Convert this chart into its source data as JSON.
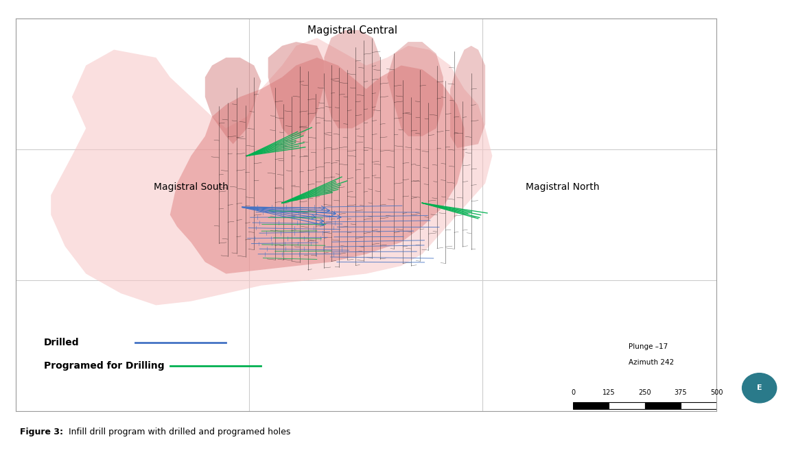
{
  "background_color": "#ffffff",
  "figure_caption": "Figure 3: Infill drill program with drilled and programed holes",
  "caption_bold": "Figure 3:",
  "caption_rest": " Infill drill program with drilled and programed holes",
  "label_magistral_central": "Magistral Central",
  "label_magistral_south": "Magistral South",
  "label_magistral_north": "Magistral North",
  "label_drilled": "Drilled",
  "label_programed": "Programed for Drilling",
  "scale_text1": "Plunge –17",
  "scale_text2": "Azimuth 242",
  "scale_labels": [
    "0",
    "125",
    "250",
    "375",
    "500"
  ],
  "color_drilled": "#4472c4",
  "color_programed": "#00b050",
  "color_ore_body_dark": "#e8a0a0",
  "color_ore_body_light": "#f5c5c5",
  "grid_color": "#cccccc",
  "border_color": "#999999",
  "text_color": "#000000"
}
